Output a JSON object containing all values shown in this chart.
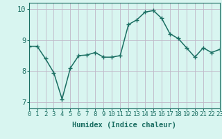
{
  "hours": [
    0,
    1,
    2,
    3,
    4,
    5,
    6,
    7,
    8,
    9,
    10,
    11,
    12,
    13,
    14,
    15,
    16,
    17,
    18,
    19,
    20,
    21,
    22,
    23
  ],
  "values": [
    8.8,
    8.8,
    8.4,
    7.95,
    7.1,
    8.1,
    8.5,
    8.52,
    8.6,
    8.45,
    8.45,
    8.5,
    9.5,
    9.65,
    9.9,
    9.95,
    9.7,
    9.2,
    9.05,
    8.75,
    8.45,
    8.75,
    8.6,
    8.7
  ],
  "xlim": [
    0,
    23
  ],
  "ylim": [
    6.8,
    10.2
  ],
  "yticks": [
    7,
    8,
    9,
    10
  ],
  "xticks": [
    0,
    1,
    2,
    3,
    4,
    5,
    6,
    7,
    8,
    9,
    10,
    11,
    12,
    13,
    14,
    15,
    16,
    17,
    18,
    19,
    20,
    21,
    22,
    23
  ],
  "xlabel": "Humidex (Indice chaleur)",
  "line_color": "#1a6e62",
  "marker": "+",
  "marker_size": 4.0,
  "background_color": "#d8f5f0",
  "grid_color_v": "#c8e8e0",
  "grid_color_h": "#c0b8c8",
  "tick_label_fontsize": 6.5,
  "xlabel_fontsize": 7.5,
  "ytick_label_fontsize": 7.5,
  "line_width": 1.1,
  "title": ""
}
